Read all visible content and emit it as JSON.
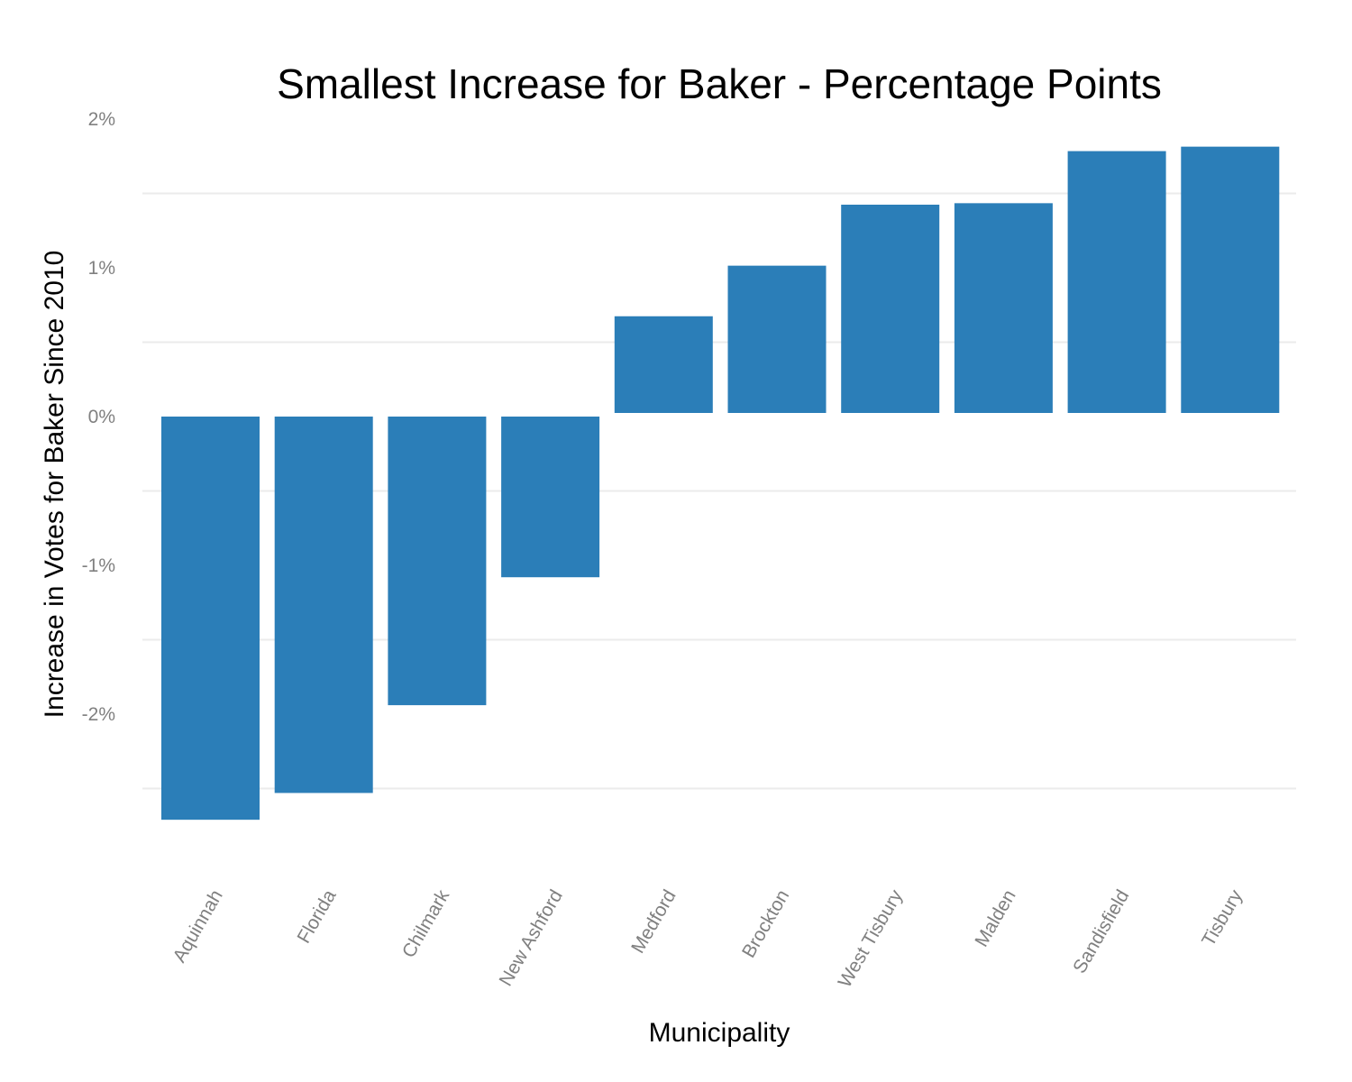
{
  "chart_data": {
    "type": "bar",
    "title": "Smallest Increase for Baker - Percentage Points",
    "xlabel": "Municipality",
    "ylabel": "Increase in Votes for Baker Since 2010",
    "categories": [
      "Aquinnah",
      "Florida",
      "Chilmark",
      "New Ashford",
      "Medford",
      "Brockton",
      "West Tisbury",
      "Malden",
      "Sandisfield",
      "Tisbury"
    ],
    "values": [
      -2.71,
      -2.53,
      -1.94,
      -1.08,
      0.65,
      0.99,
      1.4,
      1.41,
      1.76,
      1.79
    ],
    "y_ticks": [
      2,
      1,
      0,
      -1,
      -2
    ],
    "y_tick_labels": [
      "2%",
      "1%",
      "0%",
      "-1%",
      "-2%"
    ],
    "ylim": [
      -2.9,
      2.1
    ],
    "grid": true,
    "bar_color": "#2B7EB8",
    "grid_color": "#EBEBEB",
    "legend": "none"
  }
}
